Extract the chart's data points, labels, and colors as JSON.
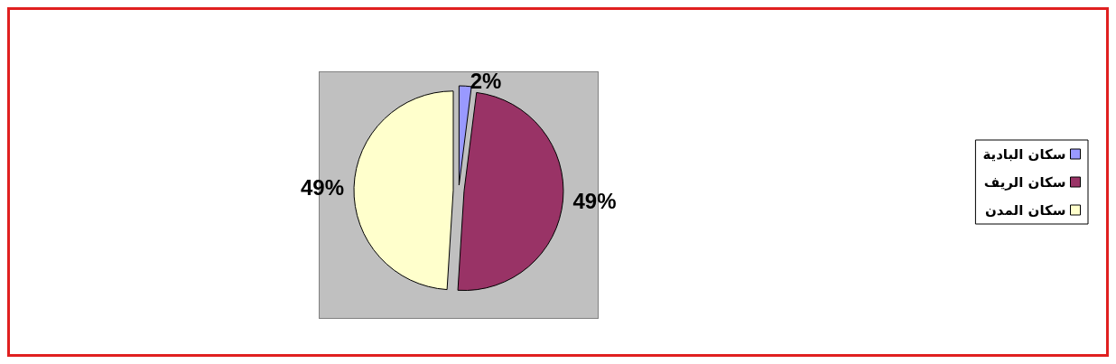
{
  "chart_data": {
    "type": "pie",
    "categories": [
      "سكان البادية",
      "سكان الريف",
      "سكان المدن"
    ],
    "values": [
      2,
      49,
      49
    ],
    "colors": [
      "#9999ff",
      "#993366",
      "#ffffcc"
    ],
    "value_labels": [
      "2%",
      "49%",
      "49%"
    ],
    "legend": "right"
  }
}
